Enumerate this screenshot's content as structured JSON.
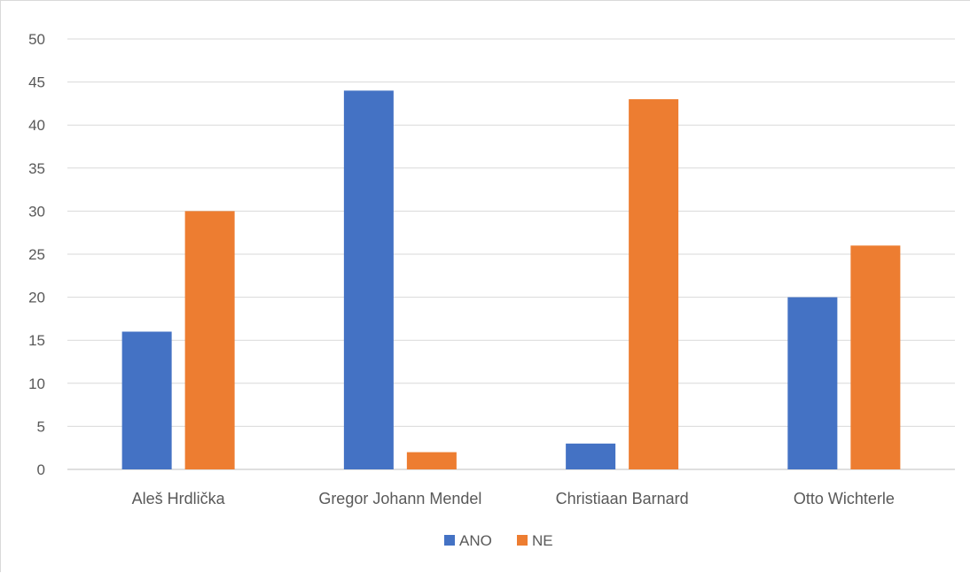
{
  "chart_data": {
    "type": "bar",
    "categories": [
      "Aleš Hrdlička",
      "Gregor Johann Mendel",
      "Christiaan Barnard",
      "Otto Wichterle"
    ],
    "series": [
      {
        "name": "ANO",
        "values": [
          16,
          44,
          3,
          20
        ],
        "color": "#4472c4"
      },
      {
        "name": "NE",
        "values": [
          30,
          2,
          43,
          26
        ],
        "color": "#ed7d31"
      }
    ],
    "title": "",
    "xlabel": "",
    "ylabel": "",
    "ylim": [
      0,
      50
    ],
    "yticks": [
      "0",
      "5",
      "10",
      "15",
      "20",
      "25",
      "30",
      "35",
      "40",
      "45",
      "50"
    ],
    "grid": true,
    "legend_position": "bottom"
  }
}
